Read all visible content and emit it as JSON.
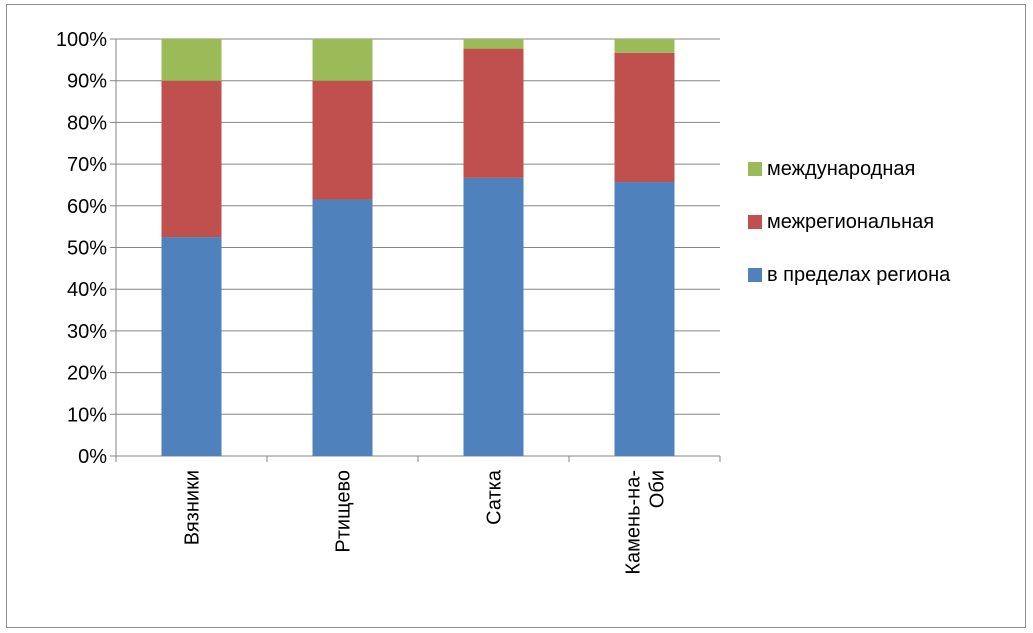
{
  "chart_data": {
    "type": "bar",
    "stacked": true,
    "percent_stacked": true,
    "categories": [
      [
        "Вязники"
      ],
      [
        "Ртищево"
      ],
      [
        "Сатка"
      ],
      [
        "Камень-на-",
        "Оби"
      ]
    ],
    "series": [
      {
        "name": "в пределах региона",
        "color": "#4F81BD",
        "values": [
          52.5,
          61.5,
          66.7,
          65.7
        ]
      },
      {
        "name": "межрегиональная",
        "color": "#C0504D",
        "values": [
          37.5,
          28.5,
          31.0,
          31.0
        ]
      },
      {
        "name": "международная",
        "color": "#9BBB59",
        "values": [
          10.0,
          10.0,
          2.3,
          3.3
        ]
      }
    ],
    "legend_order": [
      2,
      1,
      0
    ],
    "ylim": [
      0,
      100
    ],
    "yticks": [
      "0%",
      "10%",
      "20%",
      "30%",
      "40%",
      "50%",
      "60%",
      "70%",
      "80%",
      "90%",
      "100%"
    ],
    "grid": true,
    "legend_position": "right",
    "title": "",
    "xlabel": "",
    "ylabel": ""
  }
}
